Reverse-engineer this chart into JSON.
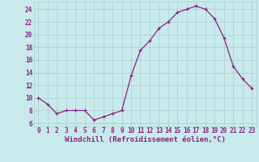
{
  "x": [
    0,
    1,
    2,
    3,
    4,
    5,
    6,
    7,
    8,
    9,
    10,
    11,
    12,
    13,
    14,
    15,
    16,
    17,
    18,
    19,
    20,
    21,
    22,
    23
  ],
  "y": [
    10,
    9,
    7.5,
    8,
    8,
    8,
    6.5,
    7,
    7.5,
    8,
    13.5,
    17.5,
    19,
    21,
    22,
    23.5,
    24,
    24.5,
    24,
    22.5,
    19.5,
    15,
    13,
    11.5
  ],
  "line_color": "#882288",
  "marker": "+",
  "marker_color": "#882288",
  "bg_color": "#c8eaea",
  "grid_color": "#aacccc",
  "axis_label": "Windchill (Refroidissement éolien,°C)",
  "xlabel_color": "#882288",
  "ylabel_ticks": [
    6,
    8,
    10,
    12,
    14,
    16,
    18,
    20,
    22,
    24
  ],
  "xlim": [
    -0.5,
    23.5
  ],
  "ylim": [
    5.5,
    25.2
  ],
  "xticks": [
    0,
    1,
    2,
    3,
    4,
    5,
    6,
    7,
    8,
    9,
    10,
    11,
    12,
    13,
    14,
    15,
    16,
    17,
    18,
    19,
    20,
    21,
    22,
    23
  ],
  "tick_color": "#882288",
  "tick_fontsize": 5.5,
  "label_fontsize": 6.5
}
